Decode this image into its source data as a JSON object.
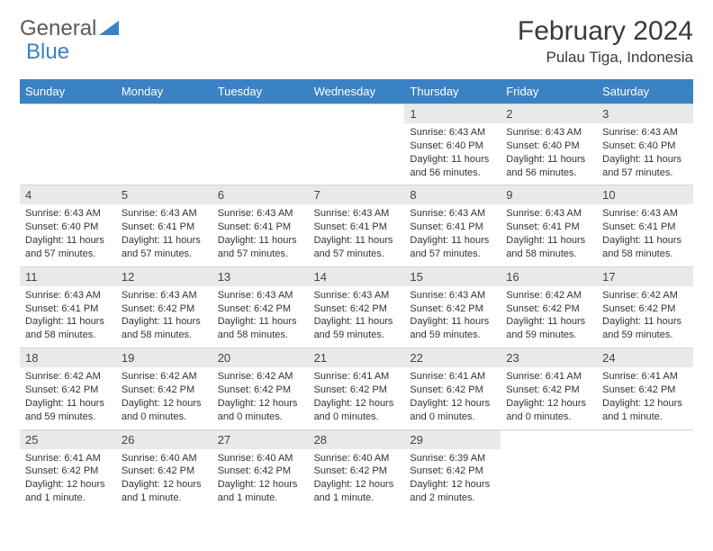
{
  "logo": {
    "text1": "General",
    "text2": "Blue"
  },
  "title": "February 2024",
  "location": "Pulau Tiga, Indonesia",
  "header_bg": "#3b82c4",
  "header_fg": "#ffffff",
  "daynum_bg": "#e8e9ea",
  "border_color": "#cfd6dd",
  "dows": [
    "Sunday",
    "Monday",
    "Tuesday",
    "Wednesday",
    "Thursday",
    "Friday",
    "Saturday"
  ],
  "first_dow": 4,
  "days": [
    {
      "n": 1,
      "sr": "6:43 AM",
      "ss": "6:40 PM",
      "dl": "11 hours and 56 minutes."
    },
    {
      "n": 2,
      "sr": "6:43 AM",
      "ss": "6:40 PM",
      "dl": "11 hours and 56 minutes."
    },
    {
      "n": 3,
      "sr": "6:43 AM",
      "ss": "6:40 PM",
      "dl": "11 hours and 57 minutes."
    },
    {
      "n": 4,
      "sr": "6:43 AM",
      "ss": "6:40 PM",
      "dl": "11 hours and 57 minutes."
    },
    {
      "n": 5,
      "sr": "6:43 AM",
      "ss": "6:41 PM",
      "dl": "11 hours and 57 minutes."
    },
    {
      "n": 6,
      "sr": "6:43 AM",
      "ss": "6:41 PM",
      "dl": "11 hours and 57 minutes."
    },
    {
      "n": 7,
      "sr": "6:43 AM",
      "ss": "6:41 PM",
      "dl": "11 hours and 57 minutes."
    },
    {
      "n": 8,
      "sr": "6:43 AM",
      "ss": "6:41 PM",
      "dl": "11 hours and 57 minutes."
    },
    {
      "n": 9,
      "sr": "6:43 AM",
      "ss": "6:41 PM",
      "dl": "11 hours and 58 minutes."
    },
    {
      "n": 10,
      "sr": "6:43 AM",
      "ss": "6:41 PM",
      "dl": "11 hours and 58 minutes."
    },
    {
      "n": 11,
      "sr": "6:43 AM",
      "ss": "6:41 PM",
      "dl": "11 hours and 58 minutes."
    },
    {
      "n": 12,
      "sr": "6:43 AM",
      "ss": "6:42 PM",
      "dl": "11 hours and 58 minutes."
    },
    {
      "n": 13,
      "sr": "6:43 AM",
      "ss": "6:42 PM",
      "dl": "11 hours and 58 minutes."
    },
    {
      "n": 14,
      "sr": "6:43 AM",
      "ss": "6:42 PM",
      "dl": "11 hours and 59 minutes."
    },
    {
      "n": 15,
      "sr": "6:43 AM",
      "ss": "6:42 PM",
      "dl": "11 hours and 59 minutes."
    },
    {
      "n": 16,
      "sr": "6:42 AM",
      "ss": "6:42 PM",
      "dl": "11 hours and 59 minutes."
    },
    {
      "n": 17,
      "sr": "6:42 AM",
      "ss": "6:42 PM",
      "dl": "11 hours and 59 minutes."
    },
    {
      "n": 18,
      "sr": "6:42 AM",
      "ss": "6:42 PM",
      "dl": "11 hours and 59 minutes."
    },
    {
      "n": 19,
      "sr": "6:42 AM",
      "ss": "6:42 PM",
      "dl": "12 hours and 0 minutes."
    },
    {
      "n": 20,
      "sr": "6:42 AM",
      "ss": "6:42 PM",
      "dl": "12 hours and 0 minutes."
    },
    {
      "n": 21,
      "sr": "6:41 AM",
      "ss": "6:42 PM",
      "dl": "12 hours and 0 minutes."
    },
    {
      "n": 22,
      "sr": "6:41 AM",
      "ss": "6:42 PM",
      "dl": "12 hours and 0 minutes."
    },
    {
      "n": 23,
      "sr": "6:41 AM",
      "ss": "6:42 PM",
      "dl": "12 hours and 0 minutes."
    },
    {
      "n": 24,
      "sr": "6:41 AM",
      "ss": "6:42 PM",
      "dl": "12 hours and 1 minute."
    },
    {
      "n": 25,
      "sr": "6:41 AM",
      "ss": "6:42 PM",
      "dl": "12 hours and 1 minute."
    },
    {
      "n": 26,
      "sr": "6:40 AM",
      "ss": "6:42 PM",
      "dl": "12 hours and 1 minute."
    },
    {
      "n": 27,
      "sr": "6:40 AM",
      "ss": "6:42 PM",
      "dl": "12 hours and 1 minute."
    },
    {
      "n": 28,
      "sr": "6:40 AM",
      "ss": "6:42 PM",
      "dl": "12 hours and 1 minute."
    },
    {
      "n": 29,
      "sr": "6:39 AM",
      "ss": "6:42 PM",
      "dl": "12 hours and 2 minutes."
    }
  ],
  "labels": {
    "sunrise": "Sunrise: ",
    "sunset": "Sunset: ",
    "daylight": "Daylight: "
  }
}
